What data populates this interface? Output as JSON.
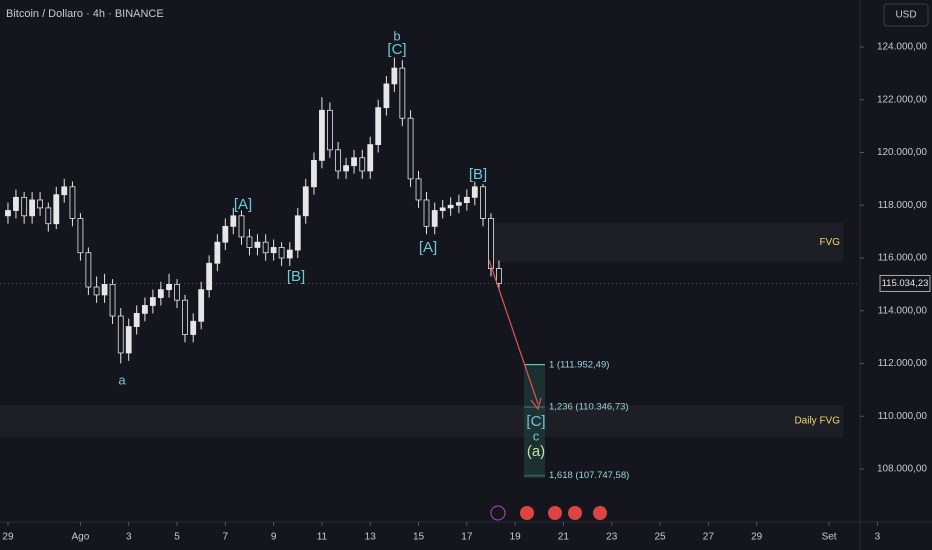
{
  "chart_data": {
    "type": "candlestick",
    "title": "Bitcoin / Dollaro · 4h · BINANCE",
    "currency": "USD",
    "up_color": "#e6e6e6",
    "down_color": "#14151d",
    "x": [
      0,
      0.33,
      0.67,
      1,
      1.33,
      1.67,
      2,
      2.33,
      2.67,
      3,
      3.33,
      3.67,
      4,
      4.33,
      4.67,
      5,
      5.33,
      5.67,
      6,
      6.33,
      6.67,
      7,
      7.33,
      7.67,
      8,
      8.33,
      8.67,
      9,
      9.33,
      9.67,
      10,
      10.33,
      10.67,
      11,
      11.33,
      11.67,
      12,
      12.33,
      12.67,
      13,
      13.33,
      13.67,
      14,
      14.33,
      14.67,
      15,
      15.33,
      15.67,
      16,
      16.33,
      16.67,
      17,
      17.33,
      17.67,
      18,
      18.33,
      18.67,
      19,
      19.33,
      19.67,
      20,
      20.33
    ],
    "ohlc": [
      [
        117600,
        118100,
        117300,
        117800
      ],
      [
        117800,
        118600,
        117500,
        118300
      ],
      [
        118300,
        118500,
        117300,
        117600
      ],
      [
        117600,
        118500,
        117300,
        118200
      ],
      [
        118200,
        118500,
        117600,
        117900
      ],
      [
        117900,
        118100,
        117000,
        117300
      ],
      [
        117300,
        118700,
        117100,
        118400
      ],
      [
        118400,
        119000,
        118100,
        118700
      ],
      [
        118700,
        118900,
        117200,
        117500
      ],
      [
        117500,
        117700,
        115900,
        116200
      ],
      [
        116200,
        116400,
        114600,
        114900
      ],
      [
        114900,
        115300,
        114300,
        114600
      ],
      [
        114600,
        115400,
        114300,
        115000
      ],
      [
        115000,
        115200,
        113500,
        113800
      ],
      [
        113800,
        114100,
        112000,
        112400
      ],
      [
        112400,
        113700,
        112100,
        113400
      ],
      [
        113400,
        114200,
        113100,
        113900
      ],
      [
        113900,
        114500,
        113600,
        114200
      ],
      [
        114200,
        114800,
        113900,
        114500
      ],
      [
        114500,
        115100,
        114200,
        114800
      ],
      [
        114800,
        115400,
        114500,
        115000
      ],
      [
        115000,
        115200,
        114100,
        114400
      ],
      [
        114400,
        114600,
        112800,
        113100
      ],
      [
        113100,
        113900,
        112800,
        113600
      ],
      [
        113600,
        115100,
        113300,
        114800
      ],
      [
        114800,
        116100,
        114500,
        115800
      ],
      [
        115800,
        116900,
        115500,
        116600
      ],
      [
        116600,
        117500,
        116300,
        117200
      ],
      [
        117200,
        117900,
        116900,
        117600
      ],
      [
        117600,
        117800,
        116500,
        116800
      ],
      [
        116800,
        117100,
        116100,
        116400
      ],
      [
        116400,
        116900,
        116100,
        116600
      ],
      [
        116600,
        116900,
        115900,
        116200
      ],
      [
        116200,
        116700,
        115900,
        116400
      ],
      [
        116400,
        116600,
        115700,
        116000
      ],
      [
        116000,
        116600,
        115700,
        116300
      ],
      [
        116300,
        117900,
        116000,
        117600
      ],
      [
        117600,
        119000,
        117300,
        118700
      ],
      [
        118700,
        120000,
        118400,
        119700
      ],
      [
        119700,
        122100,
        119400,
        121600
      ],
      [
        121600,
        121900,
        119800,
        120100
      ],
      [
        120100,
        120400,
        119000,
        119300
      ],
      [
        119300,
        119800,
        119000,
        119500
      ],
      [
        119500,
        120100,
        119200,
        119800
      ],
      [
        119800,
        120100,
        119000,
        119300
      ],
      [
        119300,
        120600,
        119000,
        120300
      ],
      [
        120300,
        122000,
        120000,
        121700
      ],
      [
        121700,
        122900,
        121400,
        122600
      ],
      [
        122600,
        123600,
        122300,
        123200
      ],
      [
        123200,
        123500,
        121000,
        121300
      ],
      [
        121300,
        121600,
        118700,
        119000
      ],
      [
        119000,
        119300,
        117900,
        118200
      ],
      [
        118200,
        118500,
        116900,
        117200
      ],
      [
        117200,
        118100,
        116900,
        117800
      ],
      [
        117800,
        118200,
        117500,
        117900
      ],
      [
        117900,
        118300,
        117600,
        118000
      ],
      [
        118000,
        118400,
        117700,
        118100
      ],
      [
        118100,
        118600,
        117800,
        118300
      ],
      [
        118300,
        118900,
        118000,
        118700
      ],
      [
        118700,
        118800,
        117200,
        117500
      ],
      [
        117500,
        117700,
        115300,
        115600
      ],
      [
        115600,
        115900,
        114800,
        115034.23
      ]
    ],
    "last_price": {
      "value": 115034.23,
      "label": "115.034,23"
    },
    "xlim": [
      -0.33,
      35.28
    ],
    "xticks": [
      {
        "value": 0,
        "label": "29"
      },
      {
        "value": 3,
        "label": "Ago"
      },
      {
        "value": 5,
        "label": "3"
      },
      {
        "value": 7,
        "label": "5"
      },
      {
        "value": 9,
        "label": "7"
      },
      {
        "value": 11,
        "label": "9"
      },
      {
        "value": 13,
        "label": "11"
      },
      {
        "value": 15,
        "label": "13"
      },
      {
        "value": 17,
        "label": "15"
      },
      {
        "value": 19,
        "label": "17"
      },
      {
        "value": 21,
        "label": "19"
      },
      {
        "value": 23,
        "label": "21"
      },
      {
        "value": 25,
        "label": "23"
      },
      {
        "value": 27,
        "label": "25"
      },
      {
        "value": 29,
        "label": "27"
      },
      {
        "value": 31,
        "label": "29"
      },
      {
        "value": 34,
        "label": "Set"
      },
      {
        "value": 36,
        "label": "3"
      }
    ],
    "ylim": [
      106066,
      125782
    ],
    "yticks": [
      {
        "value": 108000,
        "label": "108.000,00"
      },
      {
        "value": 110000,
        "label": "110.000,00"
      },
      {
        "value": 112000,
        "label": "112.000,00"
      },
      {
        "value": 114000,
        "label": "114.000,00"
      },
      {
        "value": 116000,
        "label": "116.000,00"
      },
      {
        "value": 118000,
        "label": "118.000,00"
      },
      {
        "value": 120000,
        "label": "120.000,00"
      },
      {
        "value": 122000,
        "label": "122.000,00"
      },
      {
        "value": 124000,
        "label": "124.000,00"
      }
    ],
    "zones": [
      {
        "label": "FVG",
        "from": 115850,
        "to": 117350
      },
      {
        "label": "Daily FVG",
        "from": 109210,
        "to": 110430
      }
    ],
    "fib_levels": [
      {
        "label": "1 (111.952,49)",
        "value": 111952.49
      },
      {
        "label": "1,236 (110.346,73)",
        "value": 110346.73
      },
      {
        "label": "1,618 (107.747,58)",
        "value": 107747.58
      }
    ],
    "wave_labels": [
      "a",
      "[A]",
      "[B]",
      "b",
      "[C]",
      "[A]",
      "[B]",
      "[C]",
      "c",
      "(a)"
    ]
  }
}
